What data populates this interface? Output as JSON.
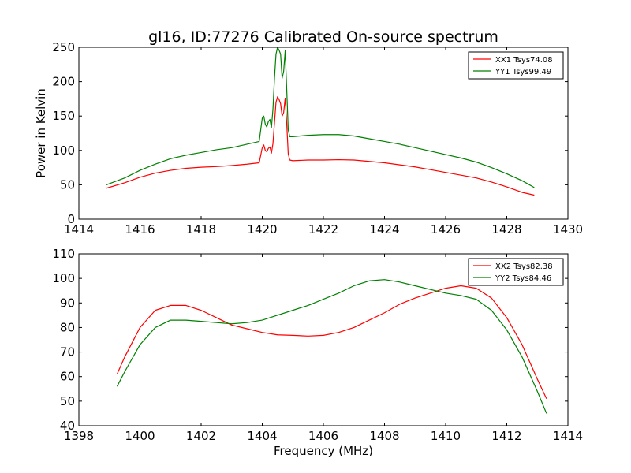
{
  "figure": {
    "title": "gl16, ID:77276 Calibrated On-source spectrum",
    "xlabel": "Frequency (MHz)"
  },
  "chart_data": [
    {
      "type": "line",
      "title": "gl16, ID:77276 Calibrated On-source spectrum",
      "xlabel": "",
      "ylabel": "Power in Kelvin",
      "xlim": [
        1414,
        1430
      ],
      "ylim": [
        0,
        250
      ],
      "xticks": [
        1414,
        1416,
        1418,
        1420,
        1422,
        1424,
        1426,
        1428,
        1430
      ],
      "yticks": [
        0,
        50,
        100,
        150,
        200,
        250
      ],
      "grid": false,
      "legend_position": "top-right",
      "series": [
        {
          "name": "XX1 Tsys74.08",
          "color": "#ff0000",
          "points": [
            [
              1414.9,
              45
            ],
            [
              1415.5,
              53
            ],
            [
              1416.0,
              61
            ],
            [
              1416.5,
              67
            ],
            [
              1417.0,
              71
            ],
            [
              1417.5,
              74
            ],
            [
              1418.0,
              75.5
            ],
            [
              1418.5,
              76.5
            ],
            [
              1419.0,
              78
            ],
            [
              1419.5,
              80
            ],
            [
              1419.9,
              82
            ],
            [
              1420.0,
              104
            ],
            [
              1420.05,
              108
            ],
            [
              1420.1,
              100
            ],
            [
              1420.15,
              98
            ],
            [
              1420.2,
              103
            ],
            [
              1420.25,
              105
            ],
            [
              1420.3,
              96
            ],
            [
              1420.35,
              110
            ],
            [
              1420.4,
              140
            ],
            [
              1420.45,
              170
            ],
            [
              1420.5,
              178
            ],
            [
              1420.55,
              174
            ],
            [
              1420.6,
              168
            ],
            [
              1420.65,
              150
            ],
            [
              1420.7,
              155
            ],
            [
              1420.75,
              176
            ],
            [
              1420.8,
              140
            ],
            [
              1420.85,
              95
            ],
            [
              1420.9,
              86
            ],
            [
              1421.0,
              85
            ],
            [
              1421.5,
              86
            ],
            [
              1422.0,
              86
            ],
            [
              1422.5,
              86.5
            ],
            [
              1423.0,
              86
            ],
            [
              1423.5,
              84
            ],
            [
              1424.0,
              82
            ],
            [
              1424.5,
              79
            ],
            [
              1425.0,
              76
            ],
            [
              1425.5,
              72
            ],
            [
              1426.0,
              68
            ],
            [
              1426.5,
              64
            ],
            [
              1427.0,
              60
            ],
            [
              1427.5,
              54
            ],
            [
              1428.0,
              47
            ],
            [
              1428.5,
              39
            ],
            [
              1428.9,
              35
            ]
          ]
        },
        {
          "name": "YY1 Tsys99.49",
          "color": "#008000",
          "points": [
            [
              1414.9,
              50
            ],
            [
              1415.5,
              60
            ],
            [
              1416.0,
              71
            ],
            [
              1416.5,
              80
            ],
            [
              1417.0,
              88
            ],
            [
              1417.5,
              93
            ],
            [
              1418.0,
              97
            ],
            [
              1418.5,
              101
            ],
            [
              1419.0,
              104
            ],
            [
              1419.5,
              109
            ],
            [
              1419.9,
              113
            ],
            [
              1420.0,
              147
            ],
            [
              1420.05,
              150
            ],
            [
              1420.1,
              138
            ],
            [
              1420.15,
              134
            ],
            [
              1420.2,
              142
            ],
            [
              1420.25,
              145
            ],
            [
              1420.3,
              133
            ],
            [
              1420.35,
              160
            ],
            [
              1420.4,
              205
            ],
            [
              1420.45,
              240
            ],
            [
              1420.5,
              250
            ],
            [
              1420.55,
              246
            ],
            [
              1420.6,
              240
            ],
            [
              1420.65,
              205
            ],
            [
              1420.7,
              215
            ],
            [
              1420.75,
              245
            ],
            [
              1420.8,
              190
            ],
            [
              1420.85,
              130
            ],
            [
              1420.9,
              120
            ],
            [
              1421.0,
              120
            ],
            [
              1421.5,
              122
            ],
            [
              1422.0,
              123
            ],
            [
              1422.5,
              123
            ],
            [
              1423.0,
              121
            ],
            [
              1423.5,
              117
            ],
            [
              1424.0,
              113
            ],
            [
              1424.5,
              109
            ],
            [
              1425.0,
              104
            ],
            [
              1425.5,
              99
            ],
            [
              1426.0,
              94
            ],
            [
              1426.5,
              89
            ],
            [
              1427.0,
              83
            ],
            [
              1427.5,
              75
            ],
            [
              1428.0,
              66
            ],
            [
              1428.5,
              56
            ],
            [
              1428.9,
              46
            ]
          ]
        }
      ]
    },
    {
      "type": "line",
      "title": "",
      "xlabel": "Frequency (MHz)",
      "ylabel": "",
      "xlim": [
        1398,
        1414
      ],
      "ylim": [
        40,
        110
      ],
      "xticks": [
        1398,
        1400,
        1402,
        1404,
        1406,
        1408,
        1410,
        1412,
        1414
      ],
      "yticks": [
        40,
        50,
        60,
        70,
        80,
        90,
        100,
        110
      ],
      "grid": false,
      "legend_position": "top-right",
      "series": [
        {
          "name": "XX2 Tsys82.38",
          "color": "#ff0000",
          "points": [
            [
              1399.25,
              61
            ],
            [
              1399.5,
              68
            ],
            [
              1400.0,
              80
            ],
            [
              1400.5,
              87
            ],
            [
              1401.0,
              89
            ],
            [
              1401.5,
              89
            ],
            [
              1402.0,
              87
            ],
            [
              1402.5,
              84
            ],
            [
              1403.0,
              81
            ],
            [
              1403.5,
              79.5
            ],
            [
              1404.0,
              78
            ],
            [
              1404.5,
              77
            ],
            [
              1405.0,
              76.8
            ],
            [
              1405.5,
              76.5
            ],
            [
              1406.0,
              76.8
            ],
            [
              1406.5,
              78
            ],
            [
              1407.0,
              80
            ],
            [
              1407.5,
              83
            ],
            [
              1408.0,
              86
            ],
            [
              1408.5,
              89.5
            ],
            [
              1409.0,
              92
            ],
            [
              1409.5,
              94
            ],
            [
              1410.0,
              96
            ],
            [
              1410.5,
              97
            ],
            [
              1411.0,
              96
            ],
            [
              1411.5,
              92
            ],
            [
              1412.0,
              84
            ],
            [
              1412.5,
              73
            ],
            [
              1413.0,
              59
            ],
            [
              1413.3,
              51
            ]
          ]
        },
        {
          "name": "YY2 Tsys84.46",
          "color": "#008000",
          "points": [
            [
              1399.25,
              56
            ],
            [
              1399.5,
              62
            ],
            [
              1400.0,
              73
            ],
            [
              1400.5,
              80
            ],
            [
              1401.0,
              83
            ],
            [
              1401.5,
              83
            ],
            [
              1402.0,
              82.5
            ],
            [
              1402.5,
              82
            ],
            [
              1403.0,
              81.5
            ],
            [
              1403.5,
              82
            ],
            [
              1404.0,
              83
            ],
            [
              1404.5,
              85
            ],
            [
              1405.0,
              87
            ],
            [
              1405.5,
              89
            ],
            [
              1406.0,
              91.5
            ],
            [
              1406.5,
              94
            ],
            [
              1407.0,
              97
            ],
            [
              1407.5,
              99
            ],
            [
              1408.0,
              99.5
            ],
            [
              1408.5,
              98.5
            ],
            [
              1409.0,
              97
            ],
            [
              1409.5,
              95.5
            ],
            [
              1410.0,
              94
            ],
            [
              1410.5,
              93
            ],
            [
              1411.0,
              91.5
            ],
            [
              1411.5,
              87
            ],
            [
              1412.0,
              79
            ],
            [
              1412.5,
              68
            ],
            [
              1413.0,
              54
            ],
            [
              1413.3,
              45
            ]
          ]
        }
      ]
    }
  ]
}
